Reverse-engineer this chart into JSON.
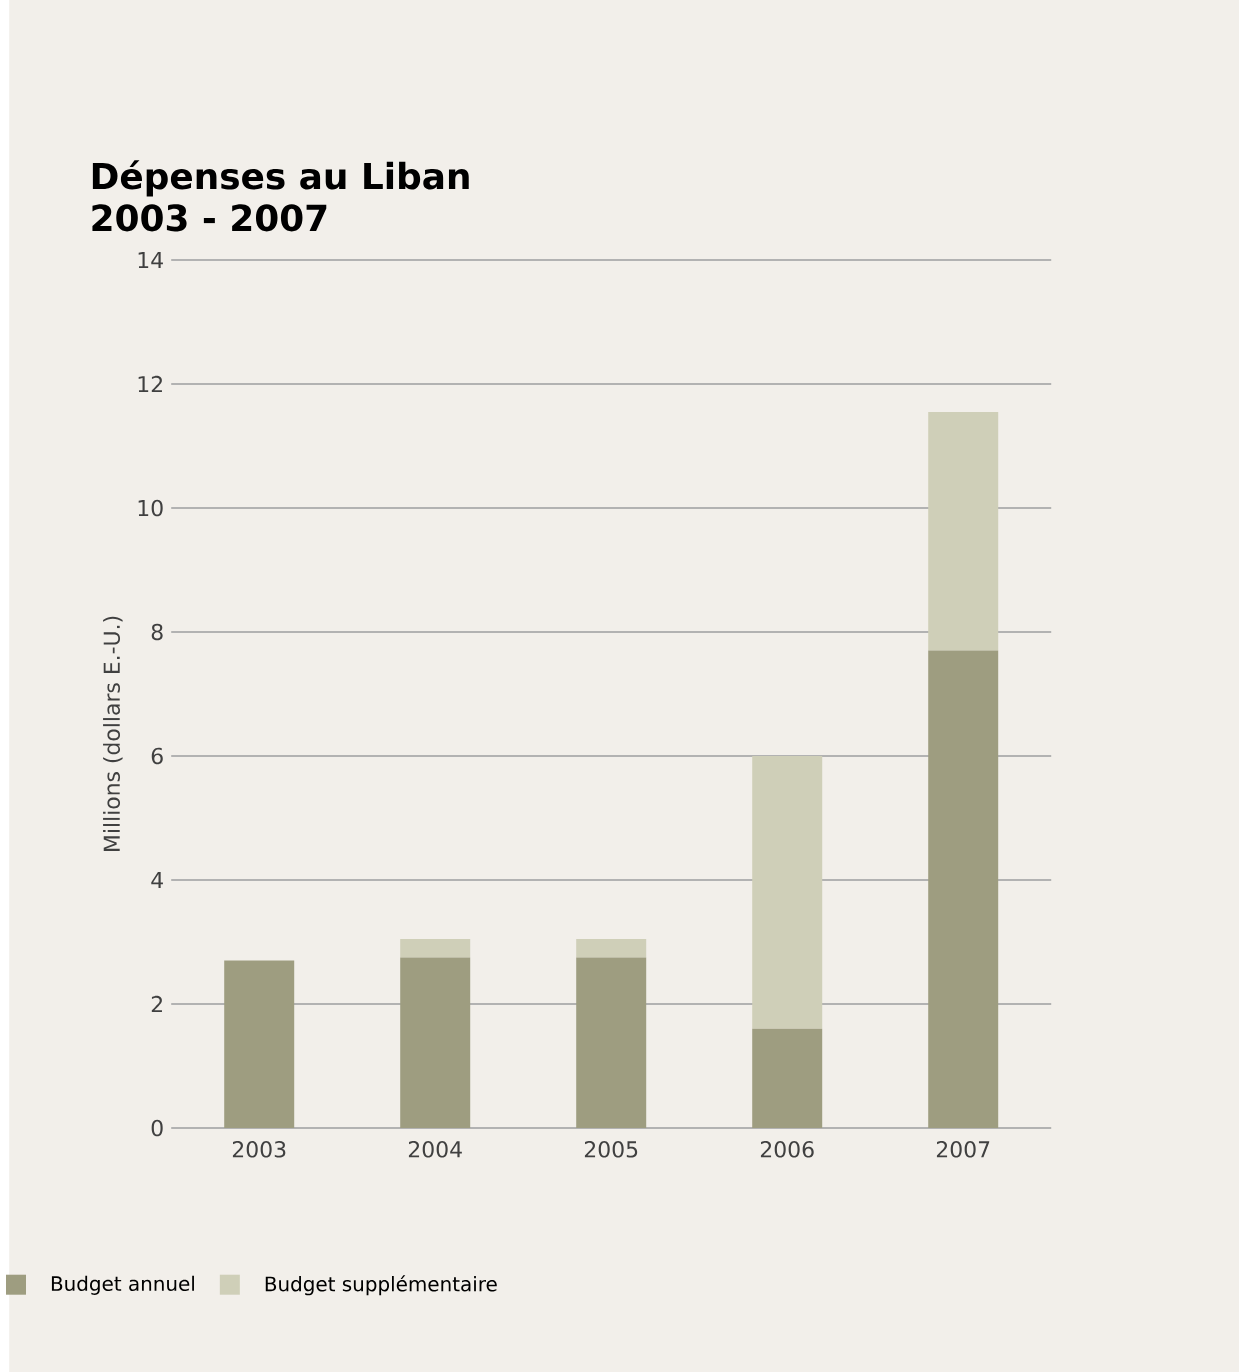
{
  "chart_data": {
    "type": "bar",
    "title": "Dépenses au Liban\n2003 - 2007",
    "ylabel": "Millions (dollars E.-U.)",
    "categories": [
      "2003",
      "2004",
      "2005",
      "2006",
      "2007"
    ],
    "stacked": true,
    "series": [
      {
        "name": "Budget annuel",
        "color": "#9e9d80",
        "values": [
          2.7,
          2.75,
          2.75,
          1.6,
          7.7
        ]
      },
      {
        "name": "Budget supplémentaire",
        "color": "#cfcfb8",
        "values": [
          0,
          0.3,
          0.3,
          4.4,
          3.85
        ]
      }
    ],
    "ylim": [
      0,
      14
    ],
    "yticks": [
      0,
      2,
      4,
      6,
      8,
      10,
      12,
      14
    ],
    "grid": "y",
    "legend": "bottom left"
  }
}
